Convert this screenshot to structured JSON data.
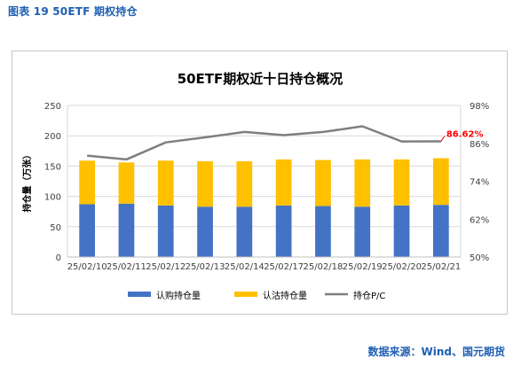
{
  "figure_label": "图表 19  50ETF 期权持仓",
  "source_note": "数据来源：Wind、国元期货",
  "colors": {
    "call_bar": "#4472c4",
    "put_bar": "#ffc000",
    "pc_line": "#7f7f7f",
    "pc_annotation": "#ff0000",
    "label_blue": "#1f5fb2"
  },
  "chart_data": {
    "type": "bar",
    "stacked": true,
    "title": "50ETF期权近十日持仓概况",
    "categories": [
      "25/02/10",
      "25/02/11",
      "25/02/12",
      "25/02/13",
      "25/02/14",
      "25/02/17",
      "25/02/18",
      "25/02/19",
      "25/02/20",
      "25/02/21"
    ],
    "ylabel": "持仓量（万张）",
    "ylim": [
      0,
      250
    ],
    "yticks": [
      0,
      50,
      100,
      150,
      200,
      250
    ],
    "y2lim": [
      50,
      98
    ],
    "y2ticks": [
      "50%",
      "62%",
      "74%",
      "86%",
      "98%"
    ],
    "grid": true,
    "legend_position": "bottom",
    "series": [
      {
        "name": "认购持仓量",
        "type": "bar",
        "axis": "left",
        "values": [
          87,
          88,
          85,
          83,
          83,
          85,
          84,
          83,
          85,
          86
        ]
      },
      {
        "name": "认沽持仓量",
        "type": "bar",
        "axis": "left",
        "values": [
          72,
          68,
          74,
          75,
          75,
          76,
          76,
          78,
          76,
          77
        ]
      },
      {
        "name": "持仓P/C",
        "type": "line",
        "axis": "right",
        "values": [
          82.1,
          80.9,
          86.3,
          87.9,
          89.6,
          88.6,
          89.6,
          91.4,
          86.6,
          86.62
        ]
      }
    ],
    "annotation": "86.62%"
  }
}
